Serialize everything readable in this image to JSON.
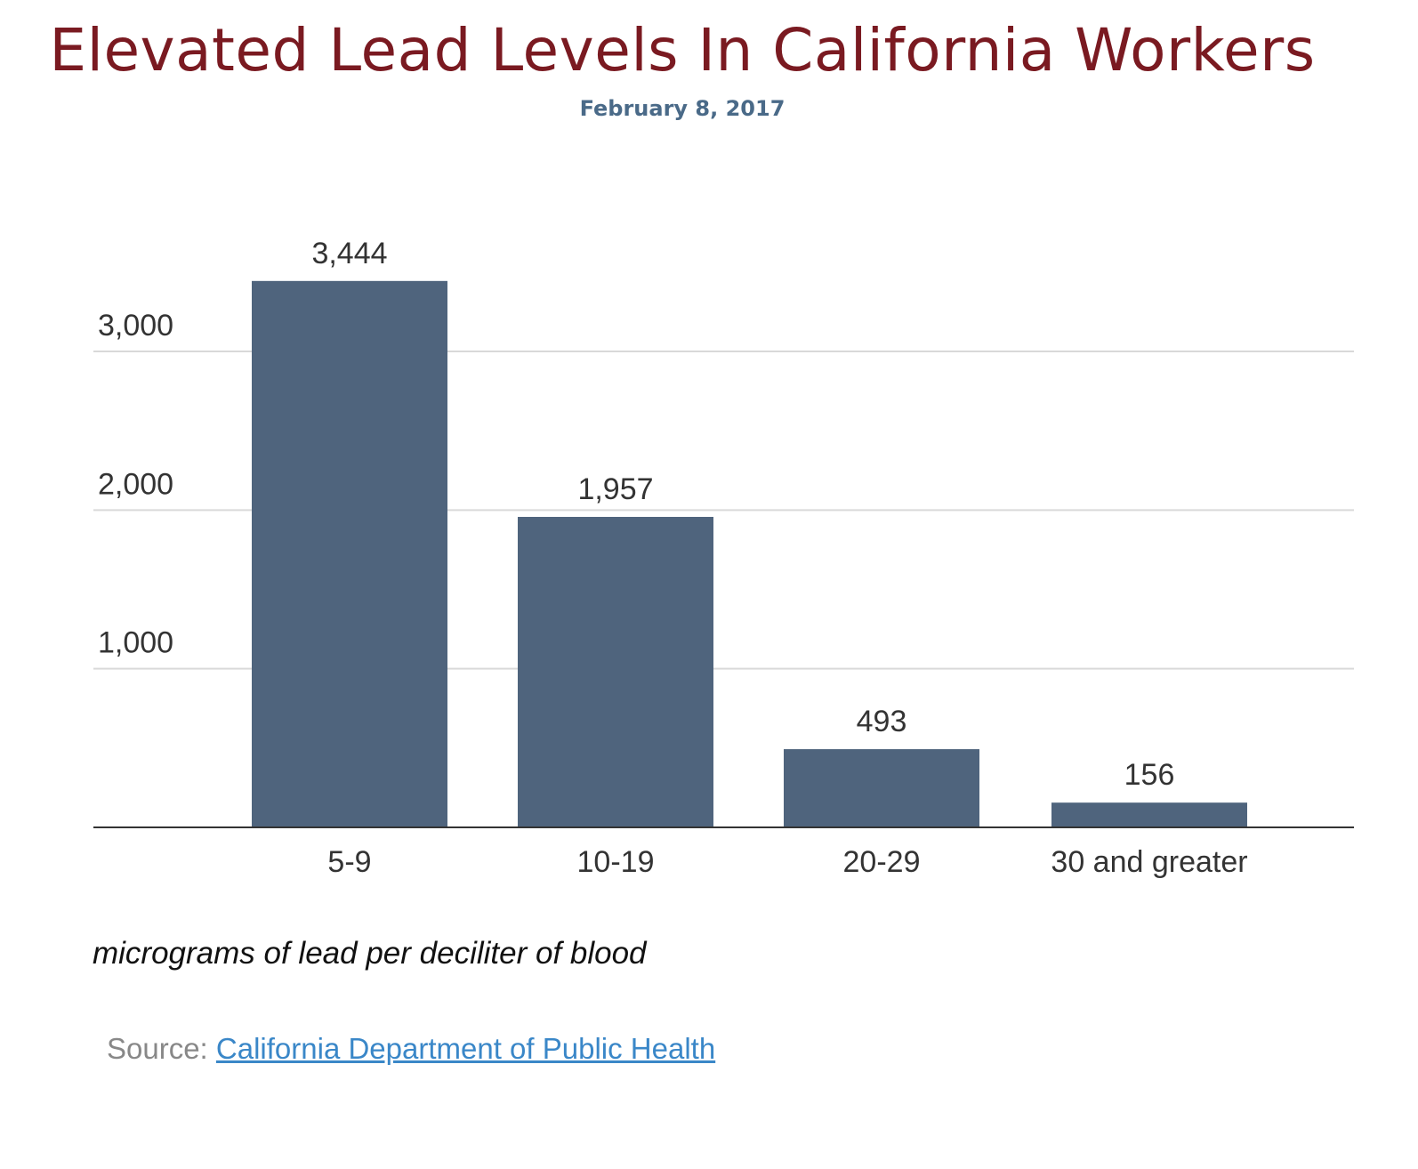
{
  "header": {
    "title": "Elevated Lead Levels In California Workers",
    "date": "February 8, 2017"
  },
  "footer": {
    "source_prefix": "Source:",
    "source_link": "California Department of Public Health"
  },
  "colors": {
    "title": "#7a1a21",
    "date": "#4a6a88",
    "bar": "#4f647d",
    "link": "#3a87c8"
  },
  "chart_data": {
    "type": "bar",
    "title": "",
    "xlabel": "micrograms of lead per deciliter of blood",
    "ylabel": "",
    "categories": [
      "5-9",
      "10-19",
      "20-29",
      "30 and greater"
    ],
    "values": [
      3444,
      1957,
      493,
      156
    ],
    "value_labels": [
      "3,444",
      "1,957",
      "493",
      "156"
    ],
    "y_ticks": [
      1000,
      2000,
      3000
    ],
    "y_tick_labels": [
      "1,000",
      "2,000",
      "3,000"
    ],
    "ylim": [
      0,
      3000
    ],
    "grid": true,
    "legend": "none"
  }
}
